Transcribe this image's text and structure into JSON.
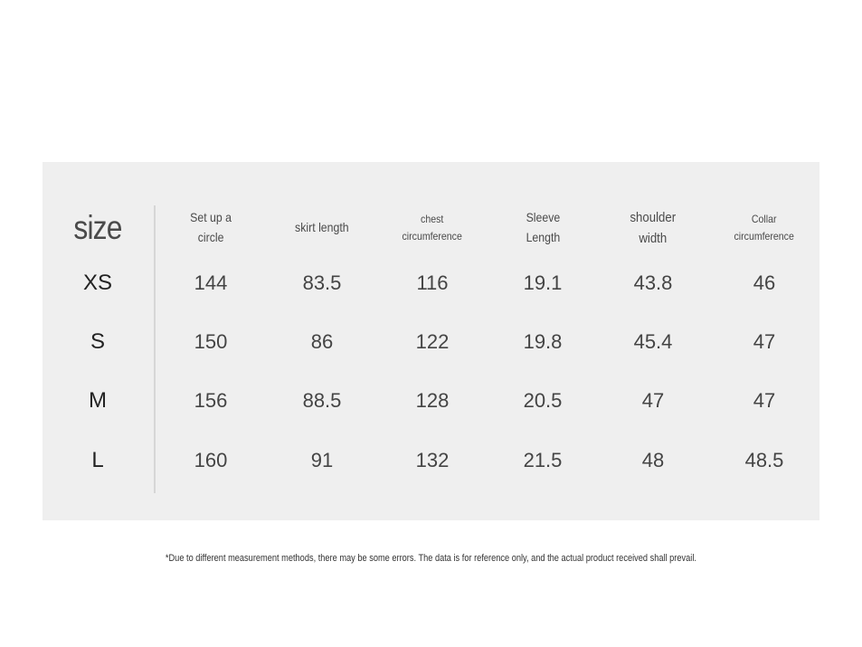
{
  "table": {
    "size_label": "size",
    "columns": [
      {
        "label": "Set up a\ncircle",
        "cls": "h-mid"
      },
      {
        "label": "skirt length",
        "cls": "h-mid"
      },
      {
        "label": "chest\ncircumference",
        "cls": "h-small"
      },
      {
        "label": "Sleeve\nLength",
        "cls": "h-mid"
      },
      {
        "label": "shoulder\nwidth",
        "cls": "h-big"
      },
      {
        "label": "Collar\ncircumference",
        "cls": "h-small"
      }
    ],
    "rows": [
      {
        "size": "XS",
        "values": [
          "144",
          "83.5",
          "116",
          "19.1",
          "43.8",
          "46"
        ]
      },
      {
        "size": "S",
        "values": [
          "150",
          "86",
          "122",
          "19.8",
          "45.4",
          "47"
        ]
      },
      {
        "size": "M",
        "values": [
          "156",
          "88.5",
          "128",
          "20.5",
          "47",
          "47"
        ]
      },
      {
        "size": "L",
        "values": [
          "160",
          "91",
          "132",
          "21.5",
          "48",
          "48.5"
        ]
      }
    ]
  },
  "footnote": "*Due to different measurement methods, there may be some errors. The data is for reference only, and the actual product received shall prevail."
}
